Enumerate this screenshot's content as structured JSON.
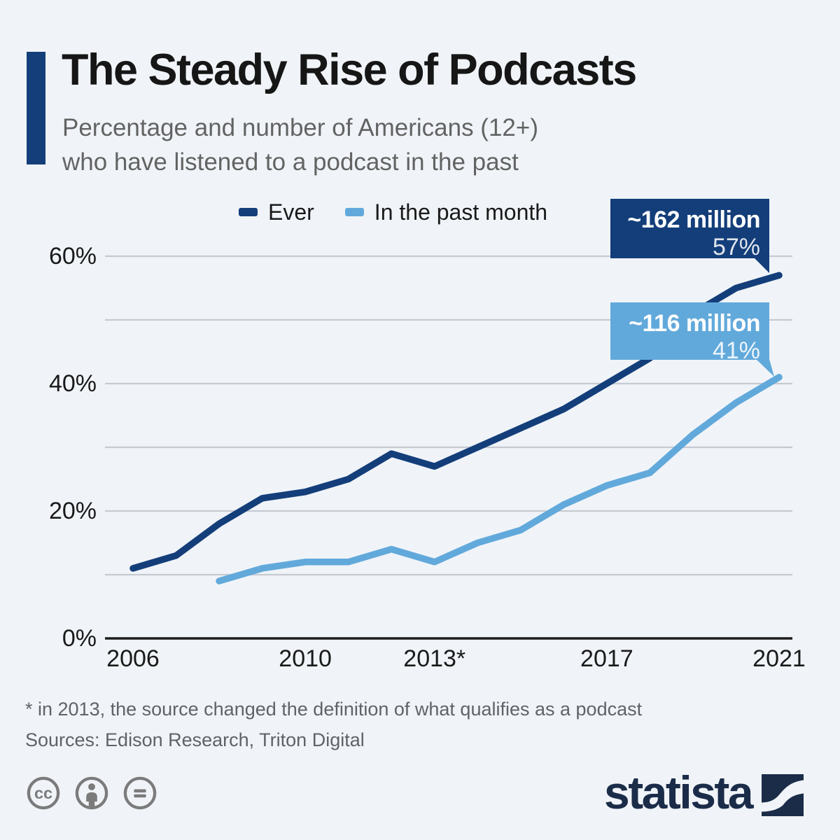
{
  "title": "The Steady Rise of Podcasts",
  "subtitle": {
    "line1": "Percentage and number of Americans (12+)",
    "line2": "who have listened to a podcast in the past"
  },
  "legend": {
    "items": [
      {
        "label": "Ever",
        "color": "#133e7a"
      },
      {
        "label": "In the past month",
        "color": "#62a9db"
      }
    ]
  },
  "callouts": [
    {
      "value": "~162 million",
      "percent": "57%",
      "color": "#133e7a",
      "series": "Ever"
    },
    {
      "value": "~116 million",
      "percent": "41%",
      "color": "#62a9db",
      "series": "In the past month"
    }
  ],
  "chart_data": {
    "type": "line",
    "x": [
      2006,
      2007,
      2008,
      2009,
      2010,
      2011,
      2012,
      2013,
      2014,
      2015,
      2016,
      2017,
      2018,
      2019,
      2020,
      2021
    ],
    "series": [
      {
        "name": "Ever",
        "color": "#133e7a",
        "values": [
          11,
          13,
          18,
          22,
          23,
          25,
          29,
          27,
          30,
          33,
          36,
          40,
          44,
          51,
          55,
          57
        ]
      },
      {
        "name": "In the past month",
        "color": "#62a9db",
        "values": [
          null,
          null,
          9,
          11,
          12,
          12,
          14,
          12,
          15,
          17,
          21,
          24,
          26,
          32,
          37,
          41
        ]
      }
    ],
    "ylim": [
      0,
      62
    ],
    "yticks": [
      0,
      20,
      40,
      60
    ],
    "ytick_suffix": "%",
    "gridline_step": 10,
    "grid": "horizontal",
    "xticks": [
      2006,
      2010,
      2013,
      2017,
      2021
    ],
    "xtick_labels": [
      "2006",
      "2010",
      "2013*",
      "2017",
      "2021"
    ],
    "legend_position": "top"
  },
  "footnote": "* in 2013, the source changed the definition of what qualifies as a podcast",
  "sources": "Sources: Edison Research, Triton Digital",
  "branding": {
    "logo_text": "statista",
    "license_icons": [
      "cc",
      "attribution",
      "no-derivatives"
    ]
  },
  "colors": {
    "background": "#f0f4f8",
    "accent": "#133e7a",
    "light": "#62a9db",
    "grid": "#c6cbd1",
    "axis": "#1c1c1c",
    "text_dark": "#161616",
    "text_gray": "#636363",
    "footnote_gray": "#5f6368",
    "icon_gray": "#7b7b7b",
    "logo_navy": "#1b2c49"
  }
}
